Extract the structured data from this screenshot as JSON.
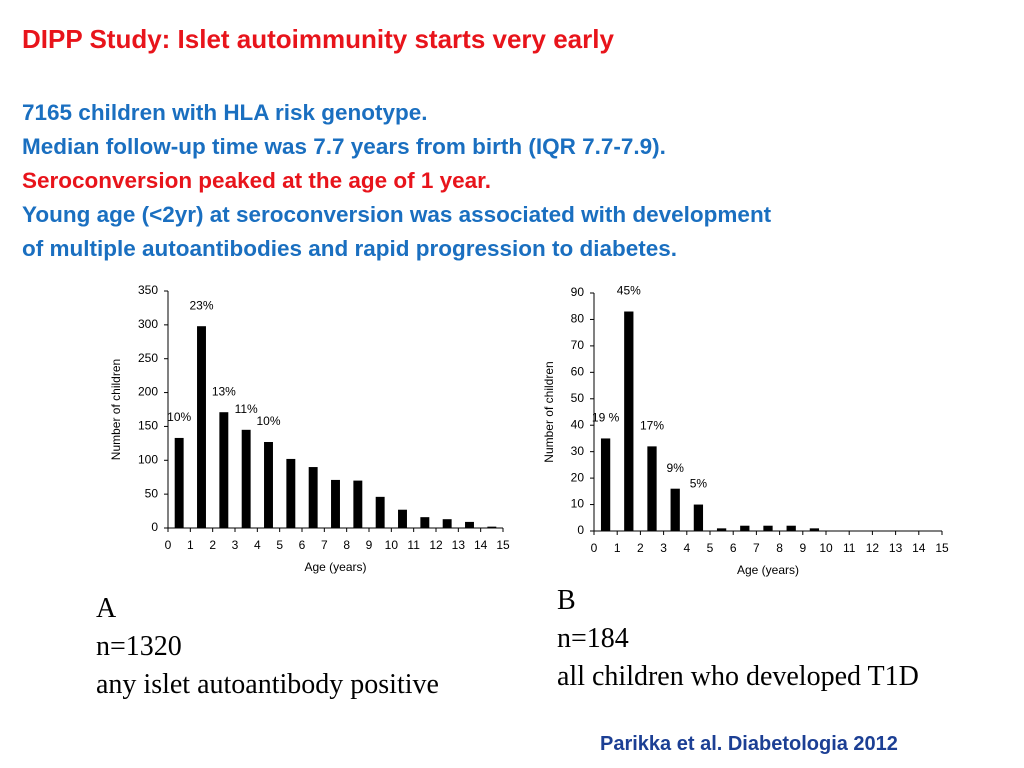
{
  "slide": {
    "title": "DIPP Study: Islet autoimmunity starts very early",
    "lines": [
      "7165 children with HLA risk genotype.",
      "Median follow-up time was 7.7 years from birth (IQR 7.7-7.9).",
      "Seroconversion peaked at the age of 1 year.",
      "Young age (<2yr) at seroconversion was associated with development",
      "of multiple autoantibodies and rapid progression to diabetes."
    ],
    "caption_a": [
      "A",
      "n=1320",
      "any islet autoantibody positive"
    ],
    "caption_b": [
      "B",
      "n=184",
      "all children who developed T1D"
    ],
    "citation": "Parikka et al.  Diabetologia 2012"
  },
  "chart_data": [
    {
      "type": "histogram",
      "ylabel": "Number of children",
      "xlabel": "Age (years)",
      "color": "#000000",
      "bins": [
        0,
        1,
        2,
        3,
        4,
        5,
        6,
        7,
        8,
        9,
        10,
        11,
        12,
        13,
        14,
        15
      ],
      "values": [
        133,
        298,
        171,
        145,
        127,
        102,
        90,
        71,
        70,
        46,
        27,
        16,
        13,
        9,
        2
      ],
      "percent_labels": [
        "10%",
        "23%",
        "13%",
        "11%",
        "10%",
        null,
        null,
        null,
        null,
        null,
        null,
        null,
        null,
        null,
        null
      ],
      "xlim": [
        0,
        15
      ],
      "xticks": [
        0,
        1,
        2,
        3,
        4,
        5,
        6,
        7,
        8,
        9,
        10,
        11,
        12,
        13,
        14,
        15
      ],
      "ylim": [
        0,
        350
      ],
      "yticks": [
        0,
        50,
        100,
        150,
        200,
        250,
        300,
        350
      ]
    },
    {
      "type": "histogram",
      "ylabel": "Number of children",
      "xlabel": "Age (years)",
      "color": "#000000",
      "bins": [
        0,
        1,
        2,
        3,
        4,
        5,
        6,
        7,
        8,
        9,
        10,
        11,
        12,
        13,
        14,
        15
      ],
      "values": [
        35,
        83,
        32,
        16,
        10,
        1,
        2,
        2,
        2,
        1,
        0,
        0,
        0,
        0,
        0
      ],
      "percent_labels": [
        "19 %",
        "45%",
        "17%",
        "9%",
        "5%",
        null,
        null,
        null,
        null,
        null,
        null,
        null,
        null,
        null,
        null
      ],
      "xlim": [
        0,
        15
      ],
      "xticks": [
        0,
        1,
        2,
        3,
        4,
        5,
        6,
        7,
        8,
        9,
        10,
        11,
        12,
        13,
        14,
        15
      ],
      "ylim": [
        0,
        90
      ],
      "yticks": [
        0,
        10,
        20,
        30,
        40,
        50,
        60,
        70,
        80,
        90
      ]
    }
  ]
}
